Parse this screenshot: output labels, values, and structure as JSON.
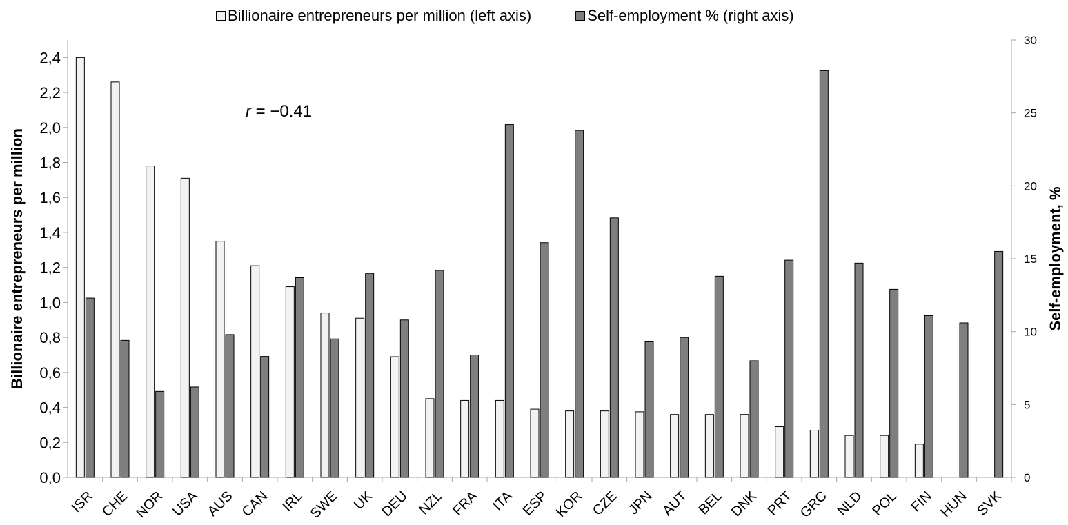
{
  "legend": {
    "series1_label": "Billionaire entrepreneurs per million (left axis)",
    "series2_label": "Self-employment % (right axis)"
  },
  "annotation": {
    "r_symbol": "r",
    "r_text": " = −0.41"
  },
  "colors": {
    "series1_fill": "#f2f2f2",
    "series2_fill": "#7f7f7f",
    "outline": "#000000",
    "axis": "#a6a6a6"
  },
  "chart_data": {
    "type": "bar",
    "categories": [
      "ISR",
      "CHE",
      "NOR",
      "USA",
      "AUS",
      "CAN",
      "IRL",
      "SWE",
      "UK",
      "DEU",
      "NZL",
      "FRA",
      "ITA",
      "ESP",
      "KOR",
      "CZE",
      "JPN",
      "AUT",
      "BEL",
      "DNK",
      "PRT",
      "GRC",
      "NLD",
      "POL",
      "FIN",
      "HUN",
      "SVK"
    ],
    "series": [
      {
        "name": "Billionaire entrepreneurs per million (left axis)",
        "axis": "left",
        "values": [
          2.4,
          2.26,
          1.78,
          1.71,
          1.35,
          1.21,
          1.09,
          0.94,
          0.91,
          0.69,
          0.45,
          0.44,
          0.44,
          0.39,
          0.38,
          0.38,
          0.375,
          0.36,
          0.36,
          0.36,
          0.29,
          0.27,
          0.24,
          0.24,
          0.19,
          0,
          0
        ]
      },
      {
        "name": "Self-employment % (right axis)",
        "axis": "right",
        "values": [
          12.3,
          9.4,
          5.9,
          6.2,
          9.8,
          8.3,
          13.7,
          9.5,
          14.0,
          10.8,
          14.2,
          8.4,
          24.2,
          16.1,
          23.8,
          17.8,
          9.3,
          9.6,
          13.8,
          8.0,
          14.9,
          27.9,
          14.7,
          12.9,
          11.1,
          10.6,
          15.5
        ]
      }
    ],
    "ylabel": "Billionaire entrepreneurs per million",
    "y2label": "Self-employment, %",
    "ylim": [
      0,
      2.5
    ],
    "y2lim": [
      0,
      30
    ],
    "yticks": [
      "0,0",
      "0,2",
      "0,4",
      "0,6",
      "0,8",
      "1,0",
      "1,2",
      "1,4",
      "1,6",
      "1,8",
      "2,0",
      "2,2",
      "2,4"
    ],
    "y2ticks": [
      "0",
      "5",
      "10",
      "15",
      "20",
      "25",
      "30"
    ],
    "legend_position": "top",
    "grid": false
  }
}
